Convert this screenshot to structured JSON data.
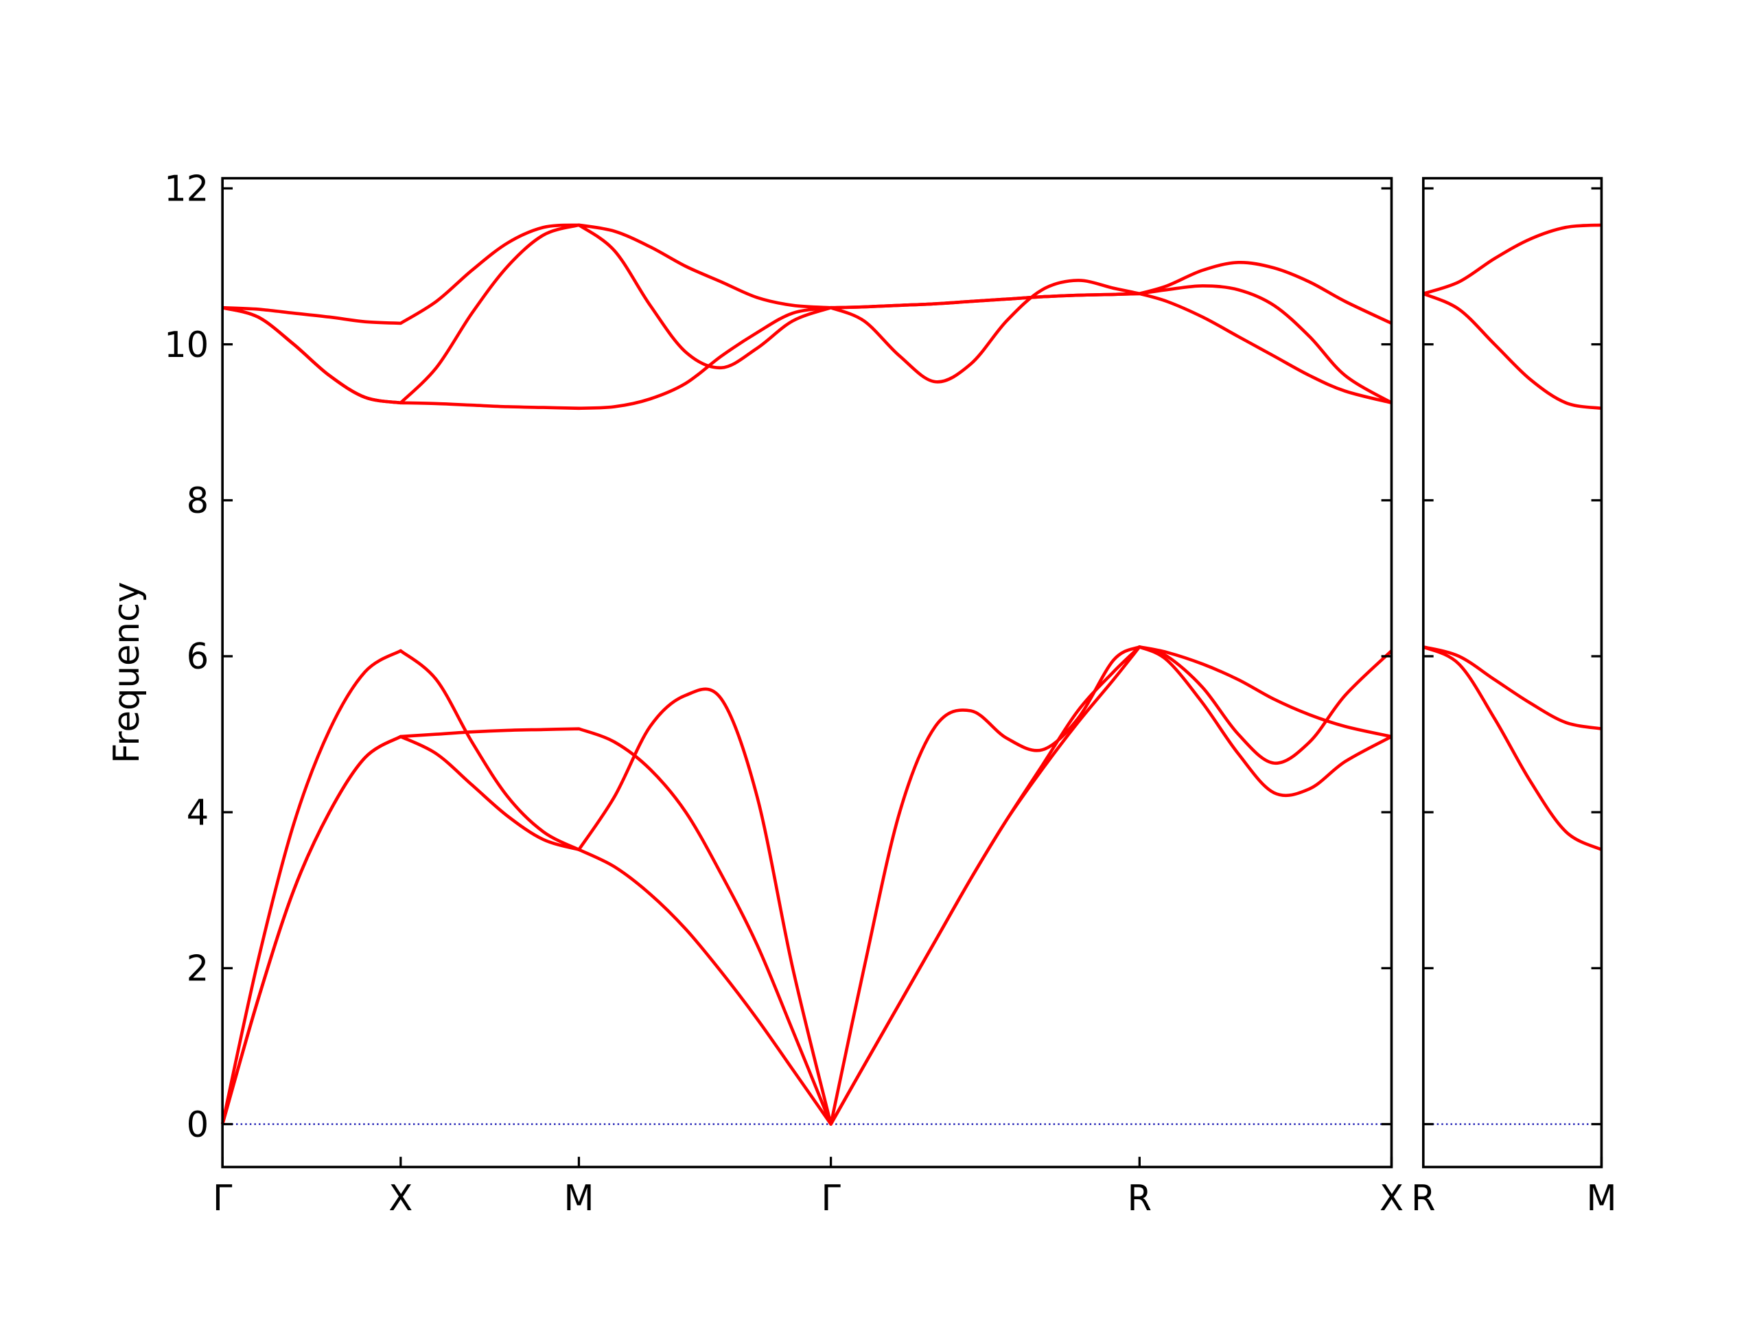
{
  "chart_data": [
    {
      "type": "line",
      "ylabel": "Frequency",
      "x": [
        0,
        0.1,
        0.2,
        0.3,
        0.4,
        0.5,
        0.6,
        0.7,
        0.8,
        0.9,
        1.0,
        1.1,
        1.2,
        1.3,
        1.4,
        1.5,
        1.6,
        1.707,
        1.8,
        1.9,
        2.0,
        2.1,
        2.2,
        2.3,
        2.4,
        2.5,
        2.573,
        2.65,
        2.75,
        2.85,
        2.95,
        3.05,
        3.15,
        3.28
      ],
      "xlim": [
        0,
        3.28
      ],
      "xticks": [
        {
          "value": 0,
          "label": "Γ"
        },
        {
          "value": 0.5,
          "label": "X"
        },
        {
          "value": 1.0,
          "label": "M"
        },
        {
          "value": 1.707,
          "label": "Γ"
        },
        {
          "value": 2.573,
          "label": "R"
        },
        {
          "value": 3.28,
          "label": "X"
        }
      ],
      "ylim": [
        -0.55,
        12.13
      ],
      "yticks": [
        0,
        2,
        4,
        6,
        8,
        10,
        12
      ],
      "yticklabels": true,
      "hline": 0,
      "hline_color": "#0000aa",
      "series": [
        {
          "color": "#ff0000",
          "values": [
            0,
            2.1,
            3.85,
            5.05,
            5.8,
            6.07,
            5.7,
            4.9,
            4.2,
            3.75,
            3.52,
            4.2,
            5.1,
            5.5,
            5.45,
            4.2,
            2.0,
            0,
            2.0,
            4.0,
            5.1,
            5.3,
            4.95,
            4.8,
            5.2,
            5.95,
            6.12,
            6.0,
            5.6,
            5.0,
            4.63,
            4.9,
            5.5,
            6.07
          ]
        },
        {
          "color": "#ff0000",
          "values": [
            0,
            1.6,
            3.0,
            4.0,
            4.7,
            4.97,
            5.0,
            5.03,
            5.05,
            5.06,
            5.07,
            4.9,
            4.55,
            4.0,
            3.2,
            2.3,
            1.2,
            0,
            0.75,
            1.55,
            2.35,
            3.15,
            3.9,
            4.55,
            5.15,
            5.7,
            6.12,
            5.95,
            5.4,
            4.75,
            4.25,
            4.3,
            4.65,
            4.97
          ]
        },
        {
          "color": "#ff0000",
          "values": [
            0,
            1.6,
            3.0,
            4.0,
            4.7,
            4.97,
            4.75,
            4.35,
            3.95,
            3.65,
            3.52,
            3.3,
            2.95,
            2.5,
            1.95,
            1.35,
            0.7,
            0,
            0.75,
            1.55,
            2.35,
            3.15,
            3.9,
            4.6,
            5.3,
            5.8,
            6.12,
            6.05,
            5.9,
            5.7,
            5.45,
            5.25,
            5.1,
            4.97
          ]
        },
        {
          "color": "#ff0000",
          "values": [
            10.47,
            10.45,
            10.4,
            10.35,
            10.29,
            10.27,
            10.55,
            10.95,
            11.3,
            11.5,
            11.53,
            11.45,
            11.25,
            11.0,
            10.8,
            10.6,
            10.5,
            10.47,
            10.48,
            10.5,
            10.52,
            10.55,
            10.58,
            10.61,
            10.63,
            10.64,
            10.65,
            10.75,
            10.95,
            11.05,
            10.98,
            10.8,
            10.55,
            10.27
          ]
        },
        {
          "color": "#ff0000",
          "values": [
            10.47,
            10.35,
            10.0,
            9.6,
            9.32,
            9.25,
            9.7,
            10.4,
            11.0,
            11.4,
            11.53,
            11.2,
            10.5,
            9.9,
            9.7,
            9.95,
            10.3,
            10.47,
            10.3,
            9.85,
            9.52,
            9.75,
            10.3,
            10.7,
            10.82,
            10.72,
            10.65,
            10.7,
            10.75,
            10.7,
            10.5,
            10.1,
            9.6,
            9.25
          ]
        },
        {
          "color": "#ff0000",
          "values": [
            10.47,
            10.35,
            10.0,
            9.6,
            9.32,
            9.25,
            9.24,
            9.22,
            9.2,
            9.19,
            9.18,
            9.2,
            9.3,
            9.5,
            9.85,
            10.15,
            10.4,
            10.47,
            10.48,
            10.5,
            10.52,
            10.55,
            10.58,
            10.61,
            10.63,
            10.64,
            10.65,
            10.55,
            10.35,
            10.1,
            9.85,
            9.6,
            9.4,
            9.25
          ]
        }
      ]
    },
    {
      "type": "line",
      "x": [
        0,
        0.1,
        0.2,
        0.3,
        0.4,
        0.5
      ],
      "xlim": [
        0,
        0.5
      ],
      "xticks": [
        {
          "value": 0,
          "label": "R"
        },
        {
          "value": 0.5,
          "label": "M"
        }
      ],
      "ylim": [
        -0.55,
        12.13
      ],
      "yticks": [
        0,
        2,
        4,
        6,
        8,
        10,
        12
      ],
      "yticklabels": false,
      "hline": 0,
      "hline_color": "#0000aa",
      "series": [
        {
          "color": "#ff0000",
          "values": [
            6.12,
            6.0,
            5.7,
            5.4,
            5.15,
            5.07
          ]
        },
        {
          "color": "#ff0000",
          "values": [
            6.12,
            5.9,
            5.2,
            4.4,
            3.75,
            3.52
          ]
        },
        {
          "color": "#ff0000",
          "values": [
            10.65,
            10.8,
            11.1,
            11.35,
            11.5,
            11.53
          ]
        },
        {
          "color": "#ff0000",
          "values": [
            10.65,
            10.45,
            10.0,
            9.55,
            9.25,
            9.18
          ]
        }
      ]
    }
  ]
}
